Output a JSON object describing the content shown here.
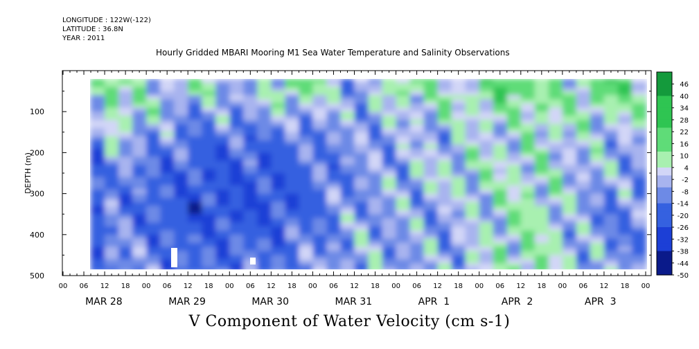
{
  "header": {
    "longitude": "LONGITUDE : 122W(-122)",
    "latitude": "LATITUDE : 36.8N",
    "year": "YEAR : 2011"
  },
  "title": "Hourly Gridded MBARI Mooring M1 Sea Water Temperature and Salinity Observations",
  "footer": "V Component of Water Velocity (cm s-1)",
  "colors": {
    "strong_negative": "#1c3fd6",
    "negative": "#4a78e0",
    "weak_negative": "#8fa3ea",
    "near_zero": "#c9cff5",
    "weak_positive": "#8fe89a",
    "positive": "#3fd160",
    "strong_positive": "#127a2c"
  },
  "chart_data": {
    "type": "heatmap",
    "title": "Hourly Gridded MBARI Mooring M1 Sea Water Temperature and Salinity Observations",
    "xlabel": "",
    "ylabel": "DEPTH (m)",
    "colorbar_label": "V Component of Water Velocity (cm s-1)",
    "ylim": [
      500,
      0
    ],
    "yticks": [
      100,
      200,
      300,
      400,
      500
    ],
    "data_depth_range": [
      20,
      485
    ],
    "x_hour_ticks": [
      "00",
      "06",
      "12",
      "18",
      "00",
      "06",
      "12",
      "18",
      "00",
      "06",
      "12",
      "18",
      "00",
      "06",
      "12",
      "18",
      "00",
      "06",
      "12",
      "18",
      "00",
      "06",
      "12",
      "18",
      "00",
      "06",
      "12",
      "18",
      "00"
    ],
    "x_day_labels": [
      "MAR 28",
      "MAR 29",
      "MAR 30",
      "MAR 31",
      "APR  1",
      "APR  2",
      "APR  3"
    ],
    "colorbar_levels": [
      46,
      40,
      34,
      28,
      22,
      16,
      10,
      4,
      -2,
      -8,
      -14,
      -20,
      -26,
      -32,
      -38,
      -44,
      -50
    ],
    "colorbar_range": [
      -50,
      52
    ],
    "depth_bins": [
      50,
      150,
      250,
      350,
      450
    ],
    "day_means_v_by_depth": [
      {
        "day": "MAR 28",
        "v": [
          14,
          2,
          -10,
          -12,
          -8
        ]
      },
      {
        "day": "MAR 29",
        "v": [
          -4,
          -16,
          -24,
          -26,
          -18
        ]
      },
      {
        "day": "MAR 30",
        "v": [
          6,
          -14,
          -22,
          -24,
          -14
        ]
      },
      {
        "day": "MAR 31",
        "v": [
          -2,
          -8,
          -10,
          -6,
          -4
        ]
      },
      {
        "day": "APR  1",
        "v": [
          10,
          -4,
          2,
          -8,
          -6
        ]
      },
      {
        "day": "APR  2",
        "v": [
          14,
          4,
          6,
          8,
          10
        ]
      },
      {
        "day": "APR  3",
        "v": [
          12,
          -2,
          -6,
          -14,
          -8
        ]
      }
    ]
  }
}
